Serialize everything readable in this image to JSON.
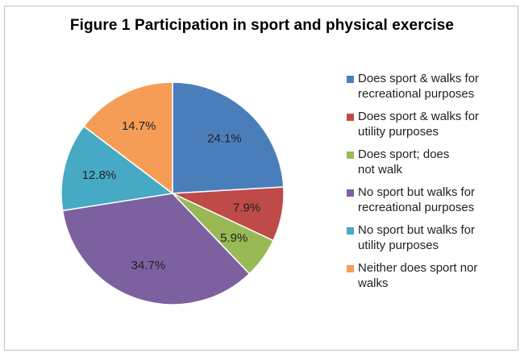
{
  "chart_data": {
    "type": "pie",
    "title": "Figure  1 Participation in sport and physical exercise",
    "legend_position": "right",
    "slices": [
      {
        "label": "Does sport & walks for recreational purposes",
        "value": 24.1,
        "display": "24.1%",
        "color": "#4a7ebb"
      },
      {
        "label": "Does sport & walks for utility purposes",
        "value": 7.9,
        "display": "7.9%",
        "color": "#be4b48"
      },
      {
        "label": "Does sport; does not walk",
        "value": 5.9,
        "display": "5.9%",
        "color": "#98b954"
      },
      {
        "label": "No sport but walks for recreational purposes",
        "value": 34.7,
        "display": "34.7%",
        "color": "#7d60a0"
      },
      {
        "label": "No sport but walks for utility purposes",
        "value": 12.8,
        "display": "12.8%",
        "color": "#46aac5"
      },
      {
        "label": "Neither does sport nor walks",
        "value": 14.7,
        "display": "14.7%",
        "color": "#f59d56"
      }
    ],
    "legend_lines": [
      [
        "Does sport & walks for",
        "recreational purposes"
      ],
      [
        "Does sport & walks for",
        "utility purposes"
      ],
      [
        "Does sport; does",
        "not walk"
      ],
      [
        "No sport but walks for",
        "recreational purposes"
      ],
      [
        "No sport but walks for",
        "utility purposes"
      ],
      [
        "Neither does sport nor",
        "walks"
      ]
    ]
  }
}
